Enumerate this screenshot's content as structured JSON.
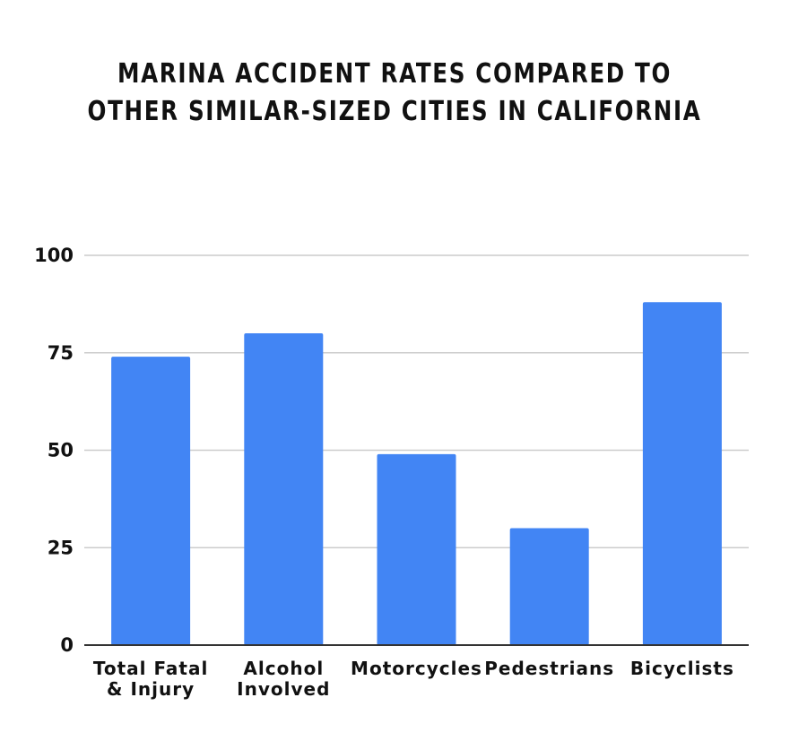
{
  "chart_data": {
    "type": "bar",
    "title_lines": [
      "MARINA ACCIDENT RATES COMPARED TO",
      "OTHER SIMILAR-SIZED CITIES IN CALIFORNIA"
    ],
    "categories": [
      [
        "Total Fatal",
        "& Injury"
      ],
      [
        "Alcohol",
        "Involved"
      ],
      [
        "Motorcycles"
      ],
      [
        "Pedestrians"
      ],
      [
        "Bicyclists"
      ]
    ],
    "values": [
      74,
      80,
      49,
      30,
      88
    ],
    "ylim": [
      0,
      100
    ],
    "yticks": [
      0,
      25,
      50,
      75,
      100
    ],
    "grid": true,
    "bar_color": "#4285f4",
    "grid_color": "#cccccc",
    "axis_color": "#333333"
  }
}
